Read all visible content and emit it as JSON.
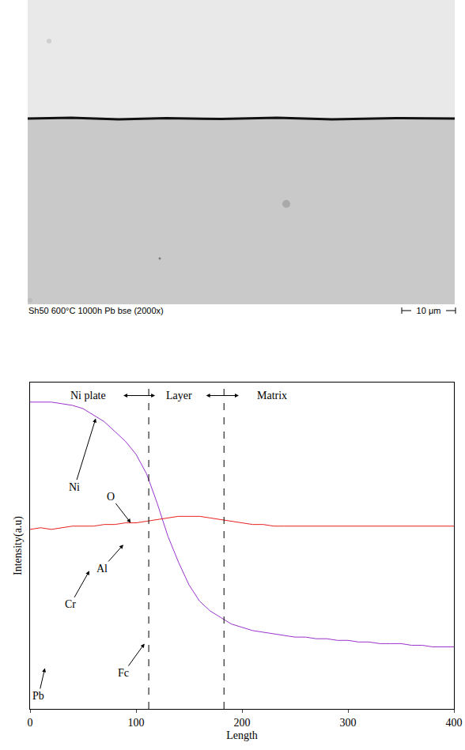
{
  "image": {
    "caption": "Sh50 600°C 1000h Pb bse (2000x)",
    "scale_bar": "10 μm"
  },
  "chart_data": {
    "type": "line",
    "x_label": "Length",
    "y_label": "Intensity(a.u)",
    "xlim": [
      0,
      400
    ],
    "xticks": [
      0,
      100,
      200,
      300,
      400
    ],
    "ylim": [
      -8,
      92
    ],
    "yticks": [],
    "tick_labels": "x",
    "grid": false,
    "dividers": [
      112,
      183
    ],
    "regions": [
      {
        "text": "Ni plate",
        "x": 55,
        "y": 88
      },
      {
        "text": "Layer",
        "x": 141,
        "y": 88
      },
      {
        "text": "Matrix",
        "x": 228,
        "y": 88
      }
    ],
    "region_arrows": [
      [
        87,
        118
      ],
      [
        165,
        197
      ]
    ],
    "x": [
      0,
      10,
      20,
      30,
      40,
      50,
      60,
      70,
      80,
      90,
      100,
      110,
      120,
      130,
      140,
      150,
      160,
      170,
      180,
      190,
      200,
      210,
      220,
      230,
      240,
      250,
      260,
      270,
      280,
      290,
      300,
      310,
      320,
      330,
      340,
      350,
      360,
      370,
      380,
      390,
      400
    ],
    "series": [
      {
        "name": "Ni",
        "color": "#9a32cd",
        "label_point": [
          62,
          81
        ],
        "label_text_at": [
          42,
          60
        ],
        "values": [
          86,
          86,
          86,
          85.5,
          85,
          84,
          82,
          80,
          77,
          74,
          70,
          64,
          55,
          45,
          37,
          30,
          25,
          22,
          20,
          18,
          17,
          16,
          15.5,
          15,
          14.5,
          14,
          14,
          13.5,
          13.5,
          13,
          13,
          12.5,
          12.5,
          12,
          12,
          12,
          11.5,
          11.5,
          11,
          11,
          11
        ]
      },
      {
        "name": "O",
        "color": "#e8201e",
        "label_point": [
          95,
          49
        ],
        "label_text_at": [
          76,
          57
        ],
        "values": [
          47,
          47.5,
          47,
          47.5,
          48,
          48,
          48,
          48.5,
          48.5,
          49,
          49,
          49.5,
          50,
          50.5,
          51,
          51,
          51,
          50.5,
          50,
          49.5,
          49,
          48.5,
          48.5,
          48,
          48,
          48,
          48,
          48,
          48,
          48,
          48,
          48,
          48,
          48,
          48,
          48,
          48,
          48,
          48,
          48,
          48
        ]
      },
      {
        "name": "Al",
        "color": "#22c022",
        "label_point": [
          88,
          42.3
        ],
        "label_text_at": [
          68,
          35
        ]
      },
      {
        "name": "Cr",
        "color": "#e020e0",
        "label_point": [
          56,
          34.3
        ],
        "label_text_at": [
          38,
          24
        ]
      },
      {
        "name": "Fc",
        "color": "#000000",
        "label_point": [
          108,
          12
        ],
        "label_text_at": [
          88,
          3
        ]
      },
      {
        "name": "Pb",
        "color": "#9933cc",
        "label_point": [
          14,
          4.5
        ],
        "label_text_at": [
          8,
          -4
        ]
      }
    ]
  }
}
